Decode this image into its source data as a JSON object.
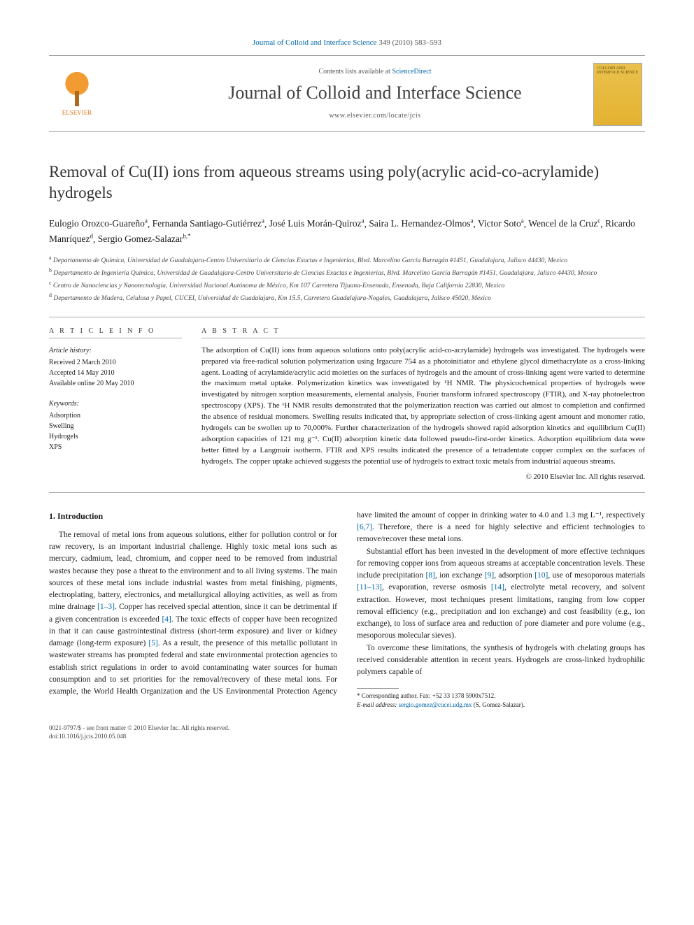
{
  "running_head": {
    "journal": "Journal of Colloid and Interface Science",
    "cite": "349 (2010) 583–593"
  },
  "masthead": {
    "publisher": "ELSEVIER",
    "contents_prefix": "Contents lists available at ",
    "contents_link": "ScienceDirect",
    "journal_name": "Journal of Colloid and Interface Science",
    "url": "www.elsevier.com/locate/jcis",
    "cover_label": "COLLOID AND INTERFACE SCIENCE"
  },
  "title": "Removal of Cu(II) ions from aqueous streams using poly(acrylic acid-co-acrylamide) hydrogels",
  "authors": [
    {
      "name": "Eulogio Orozco-Guareño",
      "aff": "a"
    },
    {
      "name": "Fernanda Santiago-Gutiérrez",
      "aff": "a"
    },
    {
      "name": "José Luis Morán-Quiroz",
      "aff": "a"
    },
    {
      "name": "Saira L. Hernandez-Olmos",
      "aff": "a"
    },
    {
      "name": "Victor Soto",
      "aff": "a"
    },
    {
      "name": "Wencel de la Cruz",
      "aff": "c"
    },
    {
      "name": "Ricardo Manríquez",
      "aff": "d"
    },
    {
      "name": "Sergio Gomez-Salazar",
      "aff": "b,*"
    }
  ],
  "affiliations": [
    {
      "key": "a",
      "text": "Departamento de Química, Universidad de Guadalajara-Centro Universitario de Ciencias Exactas e Ingenierías, Blvd. Marcelino García Barragán #1451, Guadalajara, Jalisco 44430, Mexico"
    },
    {
      "key": "b",
      "text": "Departamento de Ingeniería Química, Universidad de Guadalajara-Centro Universitario de Ciencias Exactas e Ingenierías, Blvd. Marcelino García Barragán #1451, Guadalajara, Jalisco 44430, Mexico"
    },
    {
      "key": "c",
      "text": "Centro de Nanociencias y Nanotecnología, Universidad Nacional Autónoma de México, Km 107 Carretera Tijuana-Ensenada, Ensenada, Baja California 22830, Mexico"
    },
    {
      "key": "d",
      "text": "Departamento de Madera, Celulosa y Papel, CUCEI, Universidad de Guadalajara, Km 15.5, Carretera Guadalajara-Nogales, Guadalajara, Jalisco 45020, Mexico"
    }
  ],
  "info": {
    "head_info": "A R T I C L E   I N F O",
    "head_abs": "A B S T R A C T",
    "history_label": "Article history:",
    "history": [
      "Received 2 March 2010",
      "Accepted 14 May 2010",
      "Available online 20 May 2010"
    ],
    "keywords_label": "Keywords:",
    "keywords": [
      "Adsorption",
      "Swelling",
      "Hydrogels",
      "XPS"
    ]
  },
  "abstract": "The adsorption of Cu(II) ions from aqueous solutions onto poly(acrylic acid-co-acrylamide) hydrogels was investigated. The hydrogels were prepared via free-radical solution polymerization using Irgacure 754 as a photoinitiator and ethylene glycol dimethacrylate as a cross-linking agent. Loading of acrylamide/acrylic acid moieties on the surfaces of hydrogels and the amount of cross-linking agent were varied to determine the maximum metal uptake. Polymerization kinetics was investigated by ¹H NMR. The physicochemical properties of hydrogels were investigated by nitrogen sorption measurements, elemental analysis, Fourier transform infrared spectroscopy (FTIR), and X-ray photoelectron spectroscopy (XPS). The ¹H NMR results demonstrated that the polymerization reaction was carried out almost to completion and confirmed the absence of residual monomers. Swelling results indicated that, by appropriate selection of cross-linking agent amount and monomer ratio, hydrogels can be swollen up to 70,000%. Further characterization of the hydrogels showed rapid adsorption kinetics and equilibrium Cu(II) adsorption capacities of 121 mg g⁻¹. Cu(II) adsorption kinetic data followed pseudo-first-order kinetics. Adsorption equilibrium data were better fitted by a Langmuir isotherm. FTIR and XPS results indicated the presence of a tetradentate copper complex on the surfaces of hydrogels. The copper uptake achieved suggests the potential use of hydrogels to extract toxic metals from industrial aqueous streams.",
  "copyright": "© 2010 Elsevier Inc. All rights reserved.",
  "section1_head": "1. Introduction",
  "body": {
    "p1a": "The removal of metal ions from aqueous solutions, either for pollution control or for raw recovery, is an important industrial challenge. Highly toxic metal ions such as mercury, cadmium, lead, chromium, and copper need to be removed from industrial wastes because they pose a threat to the environment and to all living systems. The main sources of these metal ions include industrial wastes from metal finishing, pigments, electroplating, battery, electronics, and metallurgical alloying activities, as well as from mine drainage ",
    "r1": "[1–3]",
    "p1b": ". Copper has received special attention, since it can be detrimental if a given concentration is exceeded ",
    "r2": "[4]",
    "p1c": ". The toxic effects of copper have been recognized in that it can cause gastrointestinal distress (short-term exposure) and liver or kidney damage (long-term exposure) ",
    "r3": "[5]",
    "p1d": ". As a result, the presence of this metallic pollutant in wastewater streams has prompted federal and state environmental protection agencies to establish strict regulations ",
    "p2a": "in order to avoid contaminating water sources for human consumption and to set priorities for the removal/recovery of these metal ions. For example, the World Health Organization and the US Environmental Protection Agency have limited the amount of copper in drinking water to 4.0 and 1.3 mg L⁻¹, respectively ",
    "r4": "[6,7]",
    "p2b": ". Therefore, there is a need for highly selective and efficient technologies to remove/recover these metal ions.",
    "p3a": "Substantial effort has been invested in the development of more effective techniques for removing copper ions from aqueous streams at acceptable concentration levels. These include precipitation ",
    "r5": "[8]",
    "p3b": ", ion exchange ",
    "r6": "[9]",
    "p3c": ", adsorption ",
    "r7": "[10]",
    "p3d": ", use of mesoporous materials ",
    "r8": "[11–13]",
    "p3e": ", evaporation, reverse osmosis ",
    "r9": "[14]",
    "p3f": ", electrolyte metal recovery, and solvent extraction. However, most techniques present limitations, ranging from low copper removal efficiency (e.g., precipitation and ion exchange) and cost feasibility (e.g., ion exchange), to loss of surface area and reduction of pore diameter and pore volume (e.g., mesoporous molecular sieves).",
    "p4": "To overcome these limitations, the synthesis of hydrogels with chelating groups has received considerable attention in recent years. Hydrogels are cross-linked hydrophilic polymers capable of"
  },
  "footnote": {
    "corr": "* Corresponding author. Fax: +52 33 1378 5900x7512.",
    "email_label": "E-mail address:",
    "email": "sergio.gomez@cucei.udg.mx",
    "email_who": " (S. Gomez-Salazar)."
  },
  "bottom": {
    "l1": "0021-9797/$ - see front matter © 2010 Elsevier Inc. All rights reserved.",
    "l2": "doi:10.1016/j.jcis.2010.05.048"
  },
  "colors": {
    "link": "#0066aa",
    "publisher": "#e67817",
    "text": "#1a1a1a",
    "rule": "#999999",
    "cover_bg": "#eac14d"
  },
  "fontsizes": {
    "title": 23,
    "journal": 26,
    "body": 11.5,
    "abstract": 11,
    "affil": 9.5,
    "footnote": 9
  }
}
